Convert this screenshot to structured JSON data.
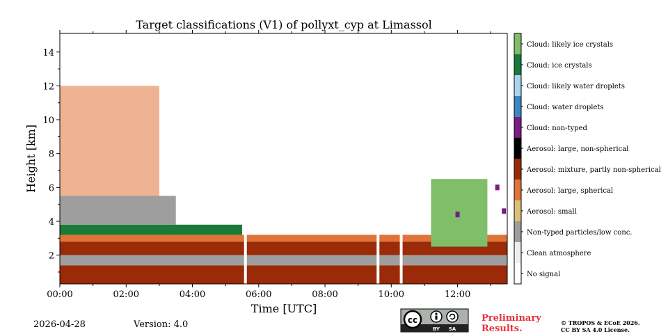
{
  "chart_data": {
    "type": "heatmap",
    "title": "Target classifications (V1) of pollyxt_cyp at Limassol",
    "xlabel": "Time [UTC]",
    "ylabel": "Height [km]",
    "xlim_hours": [
      0,
      13.5
    ],
    "ylim_km": [
      0.3,
      15.1
    ],
    "x_ticks": [
      {
        "value": 0,
        "label": "00:00"
      },
      {
        "value": 2,
        "label": "02:00"
      },
      {
        "value": 4,
        "label": "04:00"
      },
      {
        "value": 6,
        "label": "06:00"
      },
      {
        "value": 8,
        "label": "08:00"
      },
      {
        "value": 10,
        "label": "10:00"
      },
      {
        "value": 12,
        "label": "12:00"
      }
    ],
    "y_ticks": [
      {
        "value": 2,
        "label": "2"
      },
      {
        "value": 4,
        "label": "4"
      },
      {
        "value": 6,
        "label": "6"
      },
      {
        "value": 8,
        "label": "8"
      },
      {
        "value": 10,
        "label": "10"
      },
      {
        "value": 12,
        "label": "12"
      },
      {
        "value": 14,
        "label": "14"
      }
    ],
    "classes": [
      {
        "label": "Cloud: likely ice crystals",
        "color": "#7fbf6a"
      },
      {
        "label": "Cloud: ice crystals",
        "color": "#1a7a3a"
      },
      {
        "label": "Cloud: likely water droplets",
        "color": "#a9d3f2"
      },
      {
        "label": "Cloud: water droplets",
        "color": "#3b87c5"
      },
      {
        "label": "Cloud: non-typed",
        "color": "#7a1c83"
      },
      {
        "label": "Aerosol: large, non-spherical",
        "color": "#000000"
      },
      {
        "label": "Aerosol: mixture, partly non-spherical",
        "color": "#9b2a08"
      },
      {
        "label": "Aerosol: large, spherical",
        "color": "#e07438"
      },
      {
        "label": "Aerosol: small",
        "color": "#dcc07a"
      },
      {
        "label": "Non-typed particles/low conc.",
        "color": "#9e9e9e"
      },
      {
        "label": "Clean atmosphere",
        "color": "#eeeeee"
      },
      {
        "label": "No signal",
        "color": "#ffffff"
      }
    ],
    "layers_km": [
      {
        "class": "Aerosol: mixture, partly non-spherical",
        "from_hour": 0,
        "to_hour": 13.5,
        "bottom": 0.3,
        "top": 1.4
      },
      {
        "class": "Non-typed particles/low conc.",
        "from_hour": 0,
        "to_hour": 13.5,
        "bottom": 1.4,
        "top": 2.0
      },
      {
        "class": "Aerosol: mixture, partly non-spherical",
        "from_hour": 0,
        "to_hour": 13.5,
        "bottom": 2.0,
        "top": 2.8
      },
      {
        "class": "Aerosol: large, spherical",
        "from_hour": 0,
        "to_hour": 13.5,
        "bottom": 2.8,
        "top": 3.2
      },
      {
        "class": "Cloud: ice crystals",
        "from_hour": 0,
        "to_hour": 5.5,
        "bottom": 3.2,
        "top": 3.8
      },
      {
        "class": "Non-typed particles/low conc.",
        "from_hour": 0,
        "to_hour": 3.5,
        "bottom": 3.8,
        "top": 5.5
      },
      {
        "class": "Aerosol: large, spherical",
        "from_hour": 0,
        "to_hour": 3.0,
        "bottom": 5.5,
        "top": 12.0
      },
      {
        "class": "Cloud: likely ice crystals",
        "from_hour": 11.2,
        "to_hour": 12.9,
        "bottom": 2.5,
        "top": 6.5
      }
    ],
    "gaps_hours": [
      5.6,
      9.6,
      10.3
    ],
    "cloud_non_typed_events": [
      {
        "hour": 12.0,
        "height": 4.4
      },
      {
        "hour": 13.2,
        "height": 6.0
      },
      {
        "hour": 13.4,
        "height": 4.6
      }
    ]
  },
  "footer": {
    "date": "2026-04-28",
    "version": "Version: 4.0",
    "preliminary": [
      "Preliminary",
      "Results."
    ],
    "license_lines": [
      "© TROPOS & ECoE 2026.",
      "CC BY SA 4.0 License."
    ],
    "cc_badge": {
      "main": "cc",
      "by": "BY",
      "sa": "SA"
    }
  }
}
